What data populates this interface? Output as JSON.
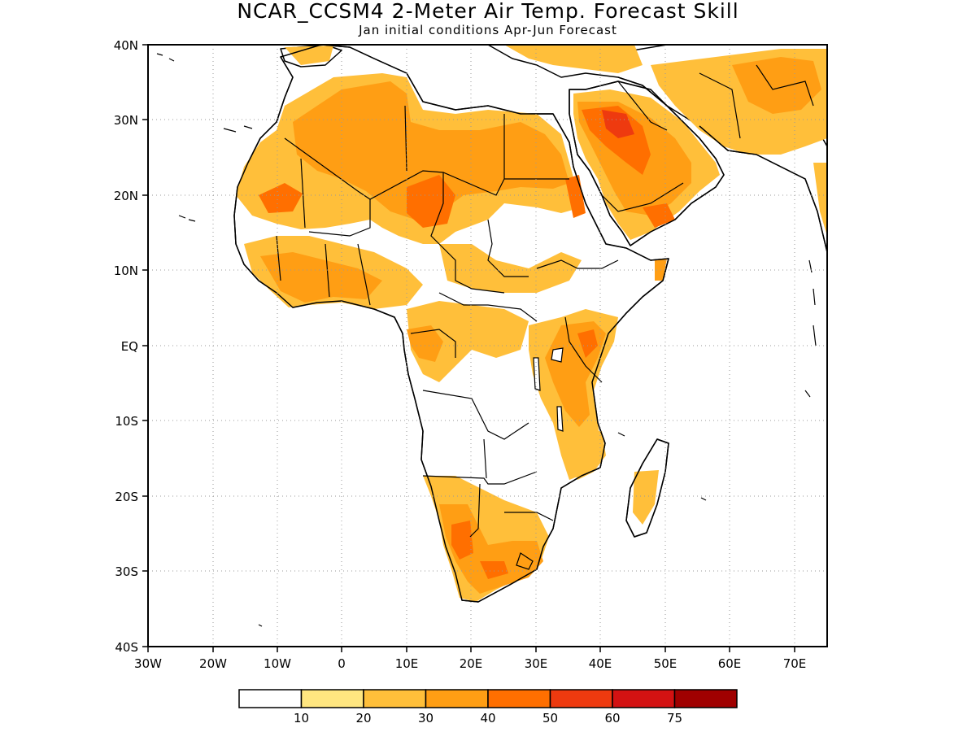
{
  "title": "NCAR_CCSM4 2-Meter Air Temp. Forecast Skill",
  "subtitle": "Jan initial conditions  Apr-Jun Forecast",
  "lat_labels": [
    "40N",
    "30N",
    "20N",
    "10N",
    "EQ",
    "10S",
    "20S",
    "30S",
    "40S"
  ],
  "lon_labels": [
    "30W",
    "20W",
    "10W",
    "0",
    "10E",
    "20E",
    "30E",
    "40E",
    "50E",
    "60E",
    "70E"
  ],
  "colorbar": {
    "labels": [
      "10",
      "20",
      "30",
      "40",
      "50",
      "60",
      "75"
    ],
    "colors": [
      "#ffffff",
      "#ffe680",
      "#ffbf3a",
      "#ff9e14",
      "#ff6f00",
      "#ee3a0f",
      "#d31212",
      "#a00000"
    ]
  },
  "colors": {
    "c10": "#ffe680",
    "c20": "#ffbf3a",
    "c30": "#ff9e14",
    "c40": "#ff6f00",
    "c50": "#ee3a0f",
    "c60": "#d31212",
    "c75": "#a00000"
  }
}
